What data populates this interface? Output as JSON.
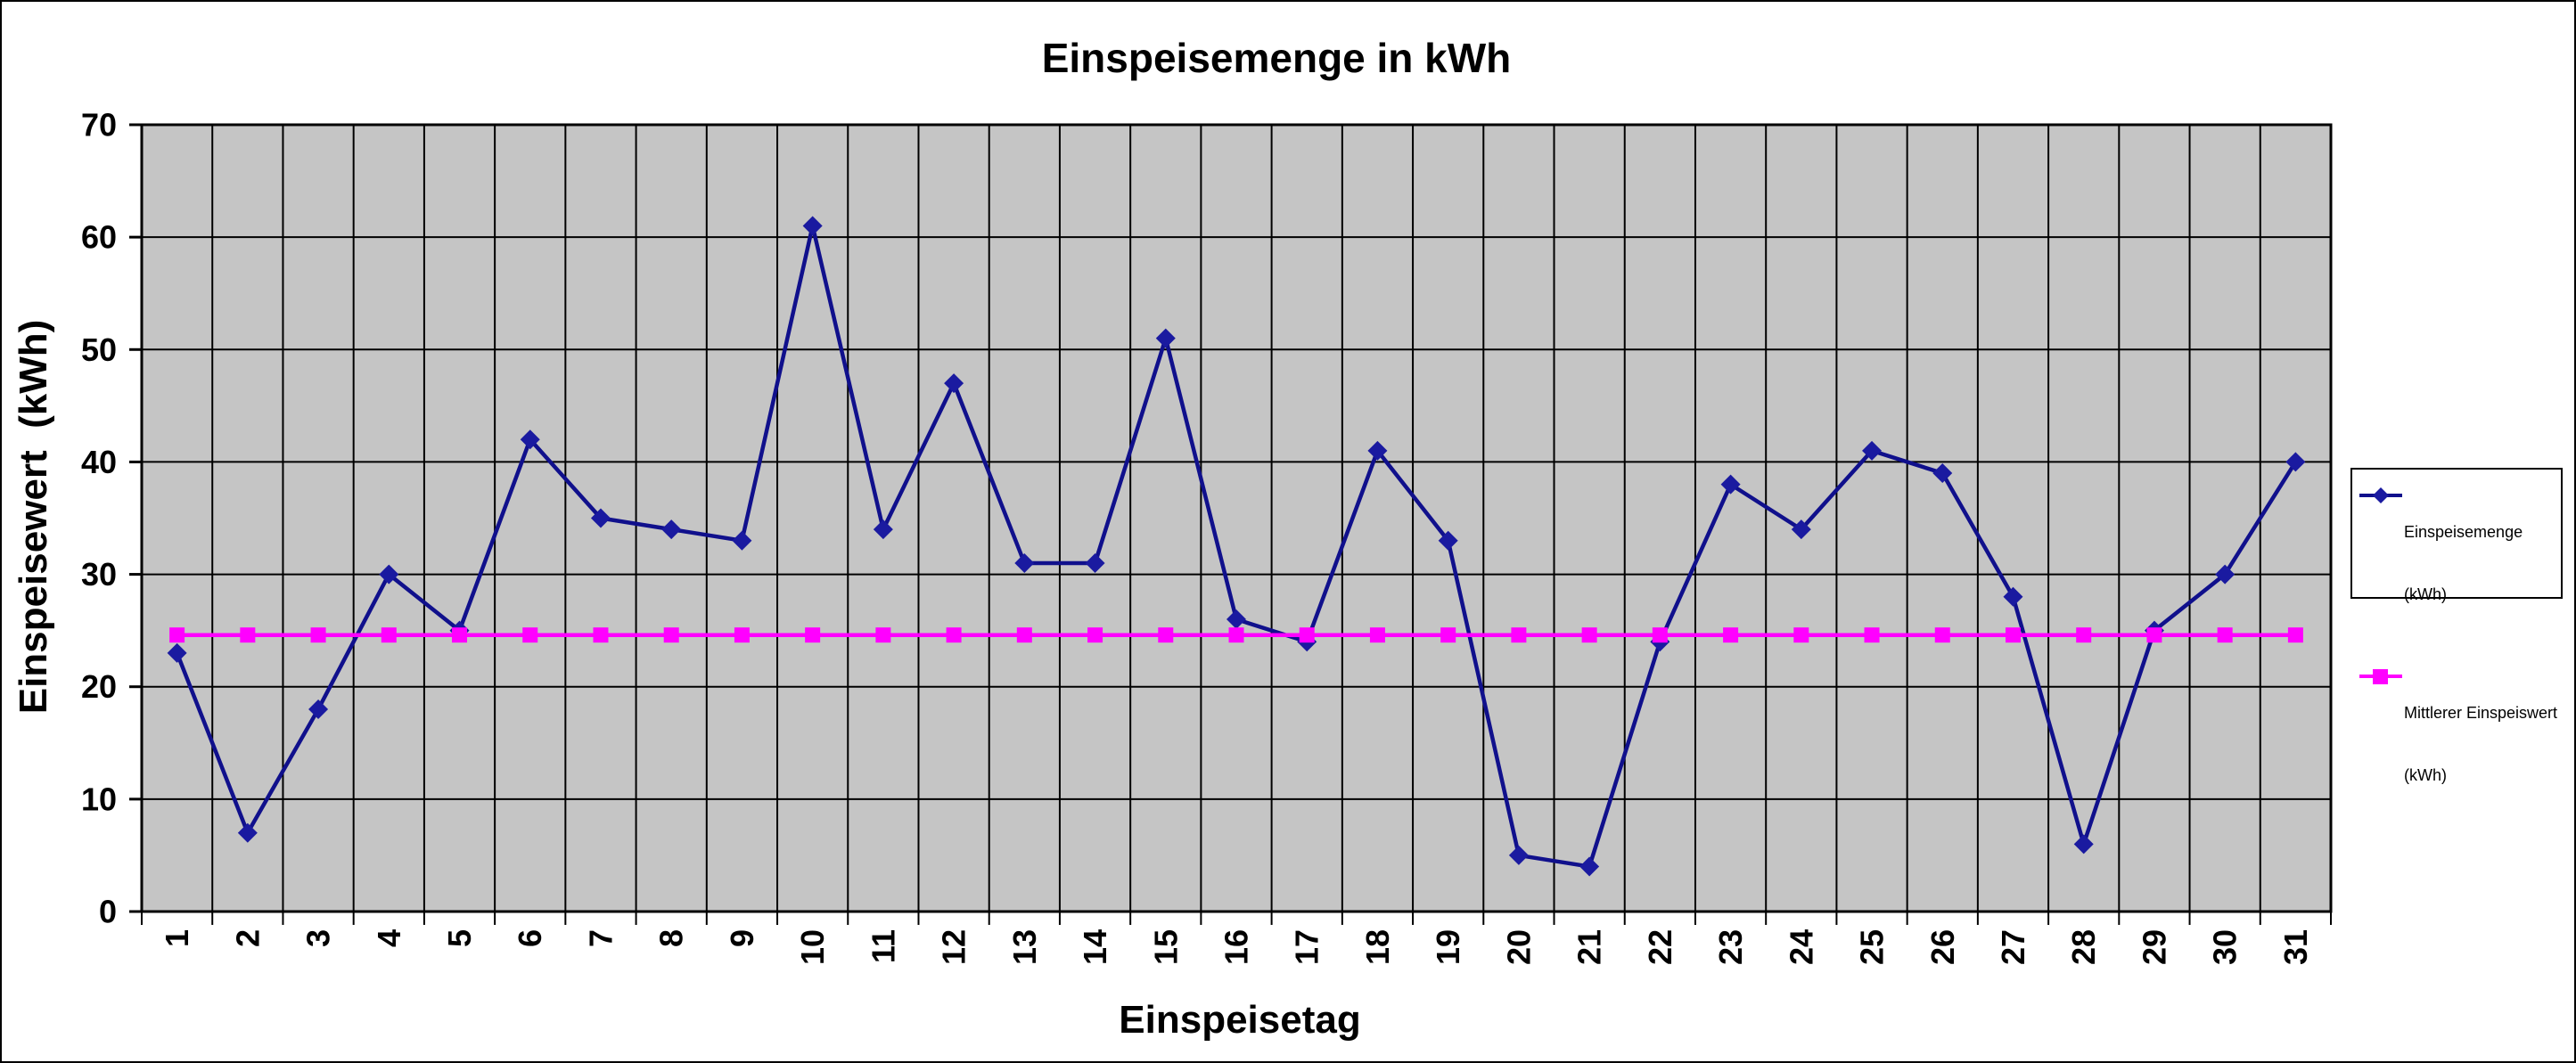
{
  "chart_data": {
    "type": "line",
    "title": "Einspeisemenge in kWh",
    "xlabel": "Einspeisetag",
    "ylabel": "Einspeisewert  (kWh)",
    "x_categories": [
      "1",
      "2",
      "3",
      "4",
      "5",
      "6",
      "7",
      "8",
      "9",
      "10",
      "11",
      "12",
      "13",
      "14",
      "15",
      "16",
      "17",
      "18",
      "19",
      "20",
      "21",
      "22",
      "23",
      "24",
      "25",
      "26",
      "27",
      "28",
      "29",
      "30",
      "31"
    ],
    "y_ticks": [
      0,
      10,
      20,
      30,
      40,
      50,
      60,
      70
    ],
    "ylim": [
      0,
      70
    ],
    "grid": true,
    "legend_position": "right",
    "plot_background": "#c5c5c5",
    "gridline_color": "#000000",
    "series": [
      {
        "name": "Einspeisemenge (kWh)",
        "legend_label_line1": "Einspeisemenge",
        "legend_label_line2": "(kWh)",
        "color": "#10108c",
        "marker_color": "#1a1aa0",
        "marker": "diamond",
        "values": [
          23,
          7,
          18,
          30,
          25,
          42,
          35,
          34,
          33,
          61,
          34,
          47,
          31,
          31,
          51,
          26,
          24,
          41,
          33,
          5,
          4,
          24,
          38,
          34,
          41,
          39,
          28,
          6,
          25,
          30,
          40
        ]
      },
      {
        "name": "Mittlerer Einspeiswert (kWh)",
        "legend_label_line1": "Mittlerer Einspeiswert",
        "legend_label_line2": "(kWh)",
        "color": "#ff00ff",
        "marker_color": "#ff00ff",
        "marker": "square",
        "values": [
          24.6,
          24.6,
          24.6,
          24.6,
          24.6,
          24.6,
          24.6,
          24.6,
          24.6,
          24.6,
          24.6,
          24.6,
          24.6,
          24.6,
          24.6,
          24.6,
          24.6,
          24.6,
          24.6,
          24.6,
          24.6,
          24.6,
          24.6,
          24.6,
          24.6,
          24.6,
          24.6,
          24.6,
          24.6,
          24.6,
          24.6
        ]
      }
    ]
  }
}
